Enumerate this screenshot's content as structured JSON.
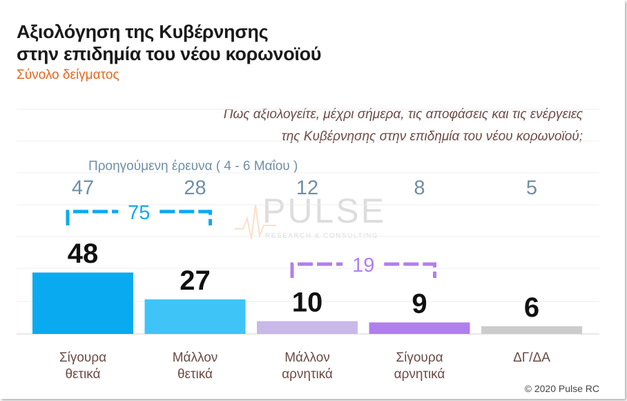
{
  "title_line1": "Αξιολόγηση της Κυβέρνησης",
  "title_line2": "στην επιδημία του νέου κορωνοϊού",
  "subtitle": "Σύνολο δείγματος",
  "question_line1": "Πως αξιολογείτε, μέχρι σήμερα, τις αποφάσεις και τις ενέργειες",
  "question_line2": "της Κυβέρνησης στην επιδημία του νέου κορωνοϊού;",
  "previous_label": "Προηγούμενη έρευνα   ( 4 - 6 Μαΐου )",
  "copyright": "© 2020 Pulse RC",
  "watermark": {
    "brand": "PULSE",
    "tagline": "RESEARCH & CONSULTING"
  },
  "colors": {
    "positive_dark": "#0aaaf0",
    "positive_light": "#3fc4f8",
    "negative_light": "#c9b8ea",
    "negative_dark": "#b07fee",
    "neutral": "#cccccc",
    "previous_text": "#6f8ea5",
    "category_text": "#6b4a45"
  },
  "chart_data": {
    "type": "bar",
    "categories": [
      [
        "Σίγουρα",
        "θετικά"
      ],
      [
        "Μάλλον",
        "θετικά"
      ],
      [
        "Μάλλον",
        "αρνητικά"
      ],
      [
        "Σίγουρα",
        "αρνητικά"
      ],
      [
        "ΔΓ/ΔΑ"
      ]
    ],
    "series": [
      {
        "values": [
          48,
          27,
          10,
          9,
          6
        ]
      },
      {
        "name": "Προηγούμενη έρευνα ( 4 - 6 Μαΐου )",
        "values": [
          47,
          28,
          12,
          8,
          5
        ]
      }
    ],
    "groups": [
      {
        "value": 75,
        "from": 0,
        "to": 1,
        "color": "#0aaaf0"
      },
      {
        "value": 19,
        "from": 2,
        "to": 3,
        "color": "#b07fee"
      }
    ],
    "ylim": [
      0,
      100
    ]
  }
}
